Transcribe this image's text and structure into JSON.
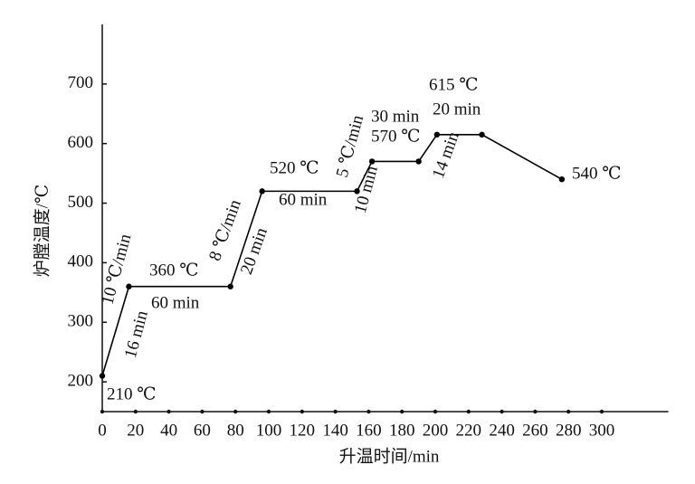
{
  "chart_data": {
    "type": "line",
    "x_label": "升温时间/min",
    "y_label": "炉膛温度/℃",
    "x": [
      0,
      16,
      77,
      96,
      153,
      162,
      190,
      201,
      228,
      276
    ],
    "series": [
      {
        "color": "#000000",
        "values": [
          210,
          360,
          360,
          520,
          520,
          570,
          570,
          615,
          615,
          540
        ]
      }
    ],
    "xlim": [
      0,
      340
    ],
    "xticks": [
      0,
      20,
      40,
      60,
      80,
      100,
      120,
      140,
      160,
      180,
      200,
      220,
      240,
      260,
      280,
      300
    ],
    "ylim": [
      150,
      800
    ],
    "yticks": [
      200,
      300,
      400,
      500,
      600,
      700
    ],
    "annotations": [
      "210 ℃",
      "10 ℃/min",
      "16 min",
      "360 ℃",
      "60 min",
      "8 ℃/min",
      "20 min",
      "520 ℃",
      "60 min",
      "5 ℃/min",
      "10 min",
      "30 min",
      "570 ℃",
      "615 ℃",
      "20 min",
      "14 min",
      "540 ℃"
    ]
  }
}
